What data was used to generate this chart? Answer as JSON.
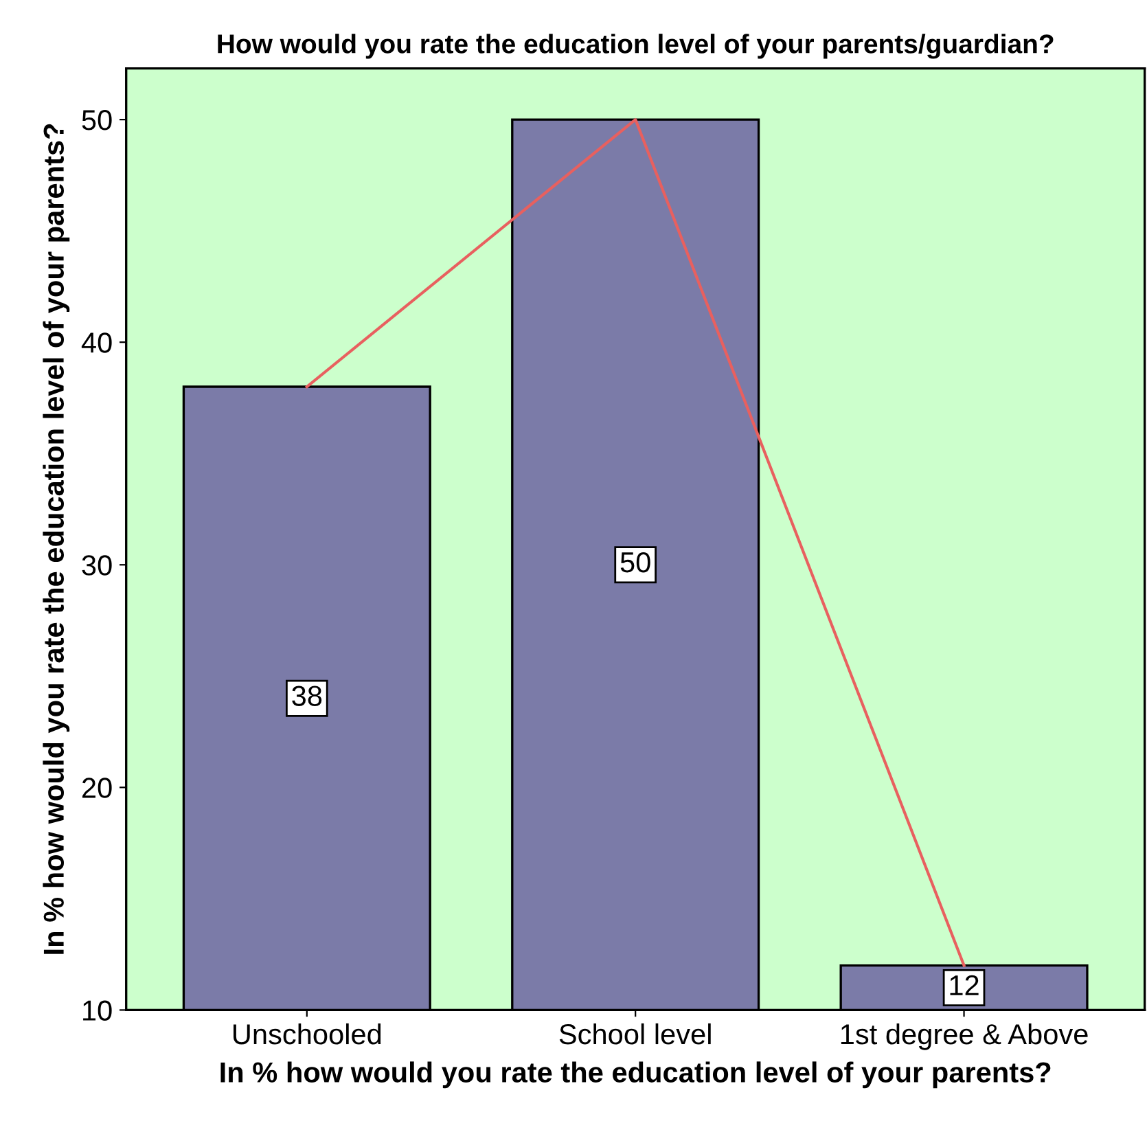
{
  "chart_data": {
    "type": "bar",
    "title": "How would you rate the education level of your parents/guardian?",
    "xlabel": "In % how would you rate the education level of your parents?",
    "ylabel": "In % how would you rate the education level of your parents?",
    "categories": [
      "Unschooled",
      "School level",
      "1st degree & Above"
    ],
    "series": [
      {
        "color": "#7b7ba8",
        "values": [
          38,
          50,
          12
        ],
        "value_labels": [
          "38",
          "50",
          "12"
        ]
      },
      {
        "type": "line",
        "color": "#e8605f",
        "values": [
          38,
          50,
          12
        ]
      }
    ],
    "ylim": [
      10,
      52.3
    ],
    "yticks": [
      10,
      20,
      30,
      40,
      50
    ],
    "grid": false,
    "legend": false
  }
}
